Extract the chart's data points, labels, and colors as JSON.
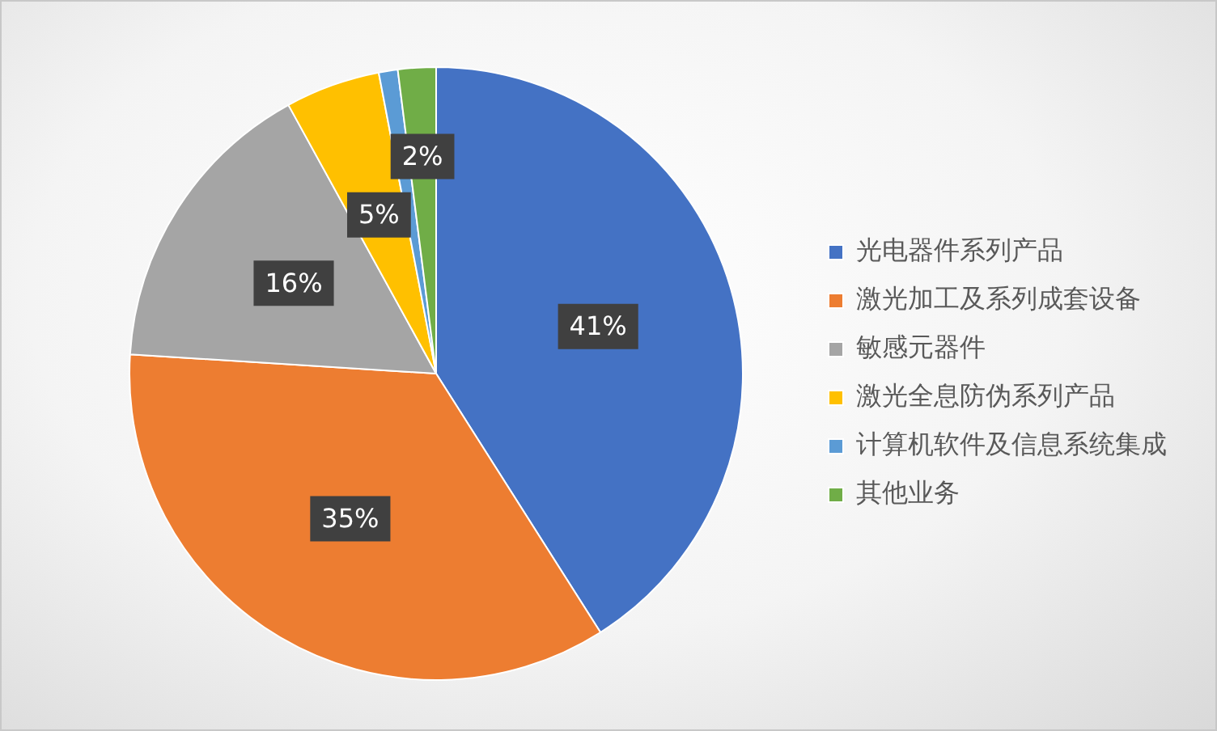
{
  "chart_data": {
    "type": "pie",
    "categories": [
      "光电器件系列产品",
      "激光加工及系列成套设备",
      "敏感元器件",
      "激光全息防伪系列产品",
      "计算机软件及信息系统集成",
      "其他业务"
    ],
    "values": [
      41,
      35,
      16,
      5,
      1,
      2
    ],
    "colors": [
      "#4472c4",
      "#ed7d31",
      "#a5a5a5",
      "#ffc000",
      "#5b9bd5",
      "#70ad47"
    ],
    "value_labels": [
      "41%",
      "35%",
      "16%",
      "5%",
      null,
      "2%"
    ],
    "legend": "right"
  }
}
